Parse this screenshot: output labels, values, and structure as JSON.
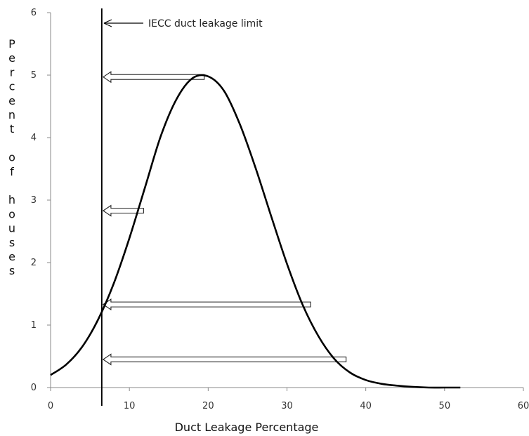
{
  "chart_data": {
    "type": "line",
    "title": "",
    "xlabel": "Duct Leakage Percentage",
    "ylabel": "Percent of houses",
    "xlim": [
      0,
      60
    ],
    "ylim": [
      0,
      6
    ],
    "x_ticks": [
      "0",
      "10",
      "20",
      "30",
      "40",
      "50",
      "60"
    ],
    "y_ticks": [
      "0",
      "1",
      "2",
      "3",
      "4",
      "5",
      "6"
    ],
    "grid": false,
    "series": [
      {
        "name": "",
        "color": "#000000",
        "x": [
          0,
          2,
          4,
          6,
          8,
          10,
          12,
          14,
          16,
          18,
          20,
          22,
          24,
          26,
          28,
          30,
          32,
          34,
          36,
          38,
          40,
          42,
          44,
          46,
          48,
          50,
          52
        ],
        "y": [
          0.2,
          0.37,
          0.65,
          1.08,
          1.66,
          2.39,
          3.21,
          4.03,
          4.62,
          4.95,
          4.98,
          4.75,
          4.22,
          3.52,
          2.74,
          1.98,
          1.32,
          0.82,
          0.46,
          0.24,
          0.12,
          0.06,
          0.03,
          0.01,
          0.0,
          0.0,
          0.0
        ]
      }
    ],
    "reference_line": {
      "x": 6.5,
      "label": "IECC duct leakage limit"
    },
    "arrows": [
      {
        "y": 4.97,
        "x_from": 19.5,
        "x_to": 6.5
      },
      {
        "y": 2.83,
        "x_from": 11.8,
        "x_to": 6.5
      },
      {
        "y": 1.33,
        "x_from": 33.0,
        "x_to": 6.5
      },
      {
        "y": 0.45,
        "x_from": 37.5,
        "x_to": 6.5
      }
    ]
  }
}
